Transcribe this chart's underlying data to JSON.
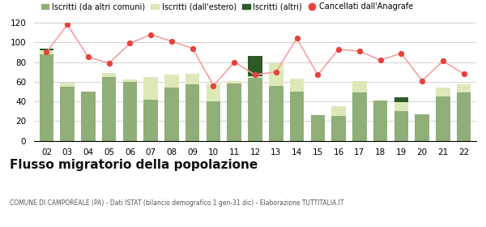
{
  "years": [
    "02",
    "03",
    "04",
    "05",
    "06",
    "07",
    "08",
    "09",
    "10",
    "11",
    "12",
    "13",
    "14",
    "15",
    "16",
    "17",
    "18",
    "19",
    "20",
    "21",
    "22"
  ],
  "iscritti_altri_comuni": [
    88,
    55,
    50,
    65,
    60,
    42,
    54,
    57,
    40,
    58,
    64,
    56,
    50,
    26,
    25,
    49,
    41,
    30,
    27,
    45,
    49
  ],
  "iscritti_estero": [
    4,
    4,
    0,
    4,
    2,
    23,
    13,
    11,
    18,
    3,
    2,
    23,
    13,
    0,
    10,
    12,
    0,
    9,
    0,
    9,
    8
  ],
  "iscritti_altri": [
    2,
    0,
    0,
    0,
    0,
    0,
    0,
    0,
    0,
    0,
    20,
    0,
    0,
    0,
    0,
    0,
    0,
    5,
    0,
    0,
    0
  ],
  "cancellati": [
    90,
    118,
    85,
    79,
    99,
    108,
    101,
    94,
    56,
    80,
    67,
    70,
    104,
    67,
    93,
    91,
    82,
    89,
    61,
    81,
    68
  ],
  "color_altri_comuni": "#8fae78",
  "color_estero": "#dde8b8",
  "color_altri": "#2d5a27",
  "color_cancellati": "#e8413c",
  "color_line": "#f4a0a0",
  "title": "Flusso migratorio della popolazione",
  "subtitle": "COMUNE DI CAMPOREALE (PA) - Dati ISTAT (bilancio demografico 1 gen-31 dic) - Elaborazione TUTTITALIA.IT",
  "legend_labels": [
    "Iscritti (da altri comuni)",
    "Iscritti (dall'estero)",
    "Iscritti (altri)",
    "Cancellati dall'Anagrafe"
  ],
  "ylim": [
    0,
    120
  ],
  "yticks": [
    0,
    20,
    40,
    60,
    80,
    100,
    120
  ]
}
